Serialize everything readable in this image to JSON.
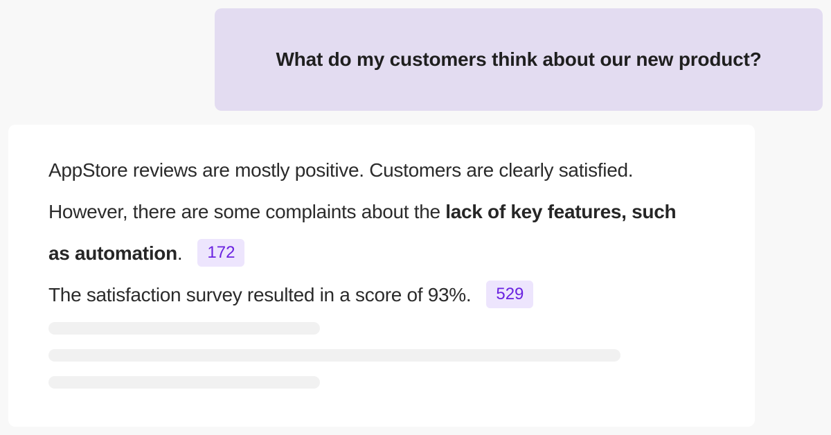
{
  "user_message": {
    "text": "What do my customers think about our new product?"
  },
  "assistant_response": {
    "line1": "AppStore reviews are mostly positive. Customers are clearly satisfied.",
    "line2_prefix": "However, there are some complaints about the ",
    "line2_bold": "lack of key features, such",
    "line3_bold": "as automation",
    "line3_suffix": ".",
    "citation_1": "172",
    "line4": "The satisfaction survey resulted in a score of 93%.",
    "citation_2": "529"
  },
  "colors": {
    "question_bubble_bg": "#e3dcf1",
    "citation_bg": "#ede5fd",
    "citation_text": "#6a22e0",
    "skeleton": "#f1f1f1"
  }
}
